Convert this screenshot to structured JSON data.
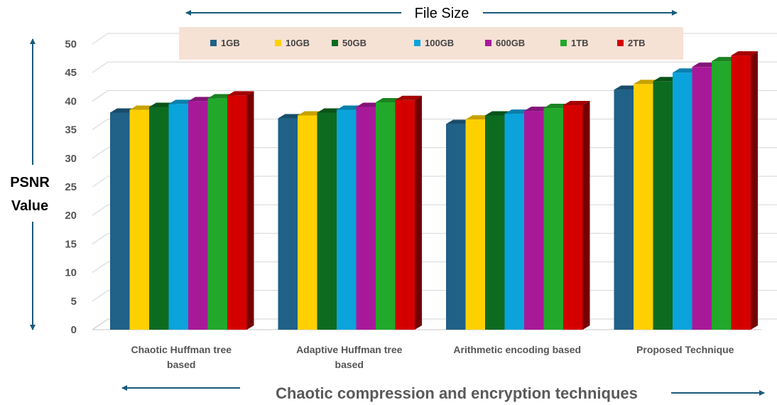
{
  "chart_data": {
    "type": "bar",
    "title": "File Size",
    "xlabel": "Chaotic compression and encryption techniques",
    "ylabel_line1": "PSNR",
    "ylabel_line2": "Value",
    "ylim": [
      0,
      50
    ],
    "yticks": [
      "0",
      "5",
      "10",
      "15",
      "20",
      "25",
      "30",
      "35",
      "40",
      "45",
      "50"
    ],
    "grid": true,
    "legend_position": "top",
    "categories": [
      [
        "Chaotic Huffman tree",
        "based"
      ],
      [
        "Adaptive Huffman tree",
        "based"
      ],
      [
        "Arithmetic encoding based"
      ],
      [
        "Proposed Technique"
      ]
    ],
    "series": [
      {
        "name": "1GB",
        "color": "#1f6187",
        "values": [
          38,
          37,
          36,
          42
        ]
      },
      {
        "name": "10GB",
        "color": "#ffd000",
        "values": [
          38.5,
          37.5,
          36.8,
          43
        ]
      },
      {
        "name": "50GB",
        "color": "#0d6b20",
        "values": [
          39,
          38,
          37.5,
          43.5
        ]
      },
      {
        "name": "100GB",
        "color": "#0aa3dc",
        "values": [
          39.5,
          38.5,
          37.8,
          45
        ]
      },
      {
        "name": "600GB",
        "color": "#a8199a",
        "values": [
          40,
          39,
          38.3,
          46
        ]
      },
      {
        "name": "1TB",
        "color": "#22a82b",
        "values": [
          40.5,
          39.8,
          38.8,
          47
        ]
      },
      {
        "name": "2TB",
        "color": "#d40000",
        "values": [
          41,
          40.2,
          39.3,
          48
        ]
      }
    ]
  }
}
